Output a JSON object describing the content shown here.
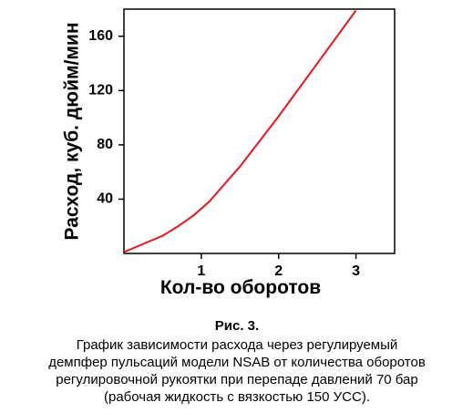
{
  "chart_data": {
    "type": "line",
    "y_label": "Расход, куб. дюйм/мин",
    "x_label": "Кол-во оборотов",
    "caption_title": "Рис. 3.",
    "caption": [
      "График зависимости расхода через регулируемый",
      "демпфер пульсаций модели NSAB от количества оборотов",
      "регулировочной рукоятки при перепаде давлений 70 бар",
      "(рабочая жидкость с вязкостью 150 УСС)."
    ],
    "x": [
      0,
      0.5,
      0.7,
      0.9,
      1.1,
      1.5,
      2,
      2.5,
      3
    ],
    "series": [
      {
        "color": "#e8141c",
        "values": [
          1,
          13,
          20,
          28,
          38,
          64,
          101,
          140,
          179
        ]
      }
    ],
    "xlim": [
      0,
      3.5
    ],
    "xticks": [
      1,
      2,
      3
    ],
    "ylim": [
      0,
      180
    ],
    "yticks": [
      40,
      80,
      120,
      160
    ],
    "grid": false
  }
}
